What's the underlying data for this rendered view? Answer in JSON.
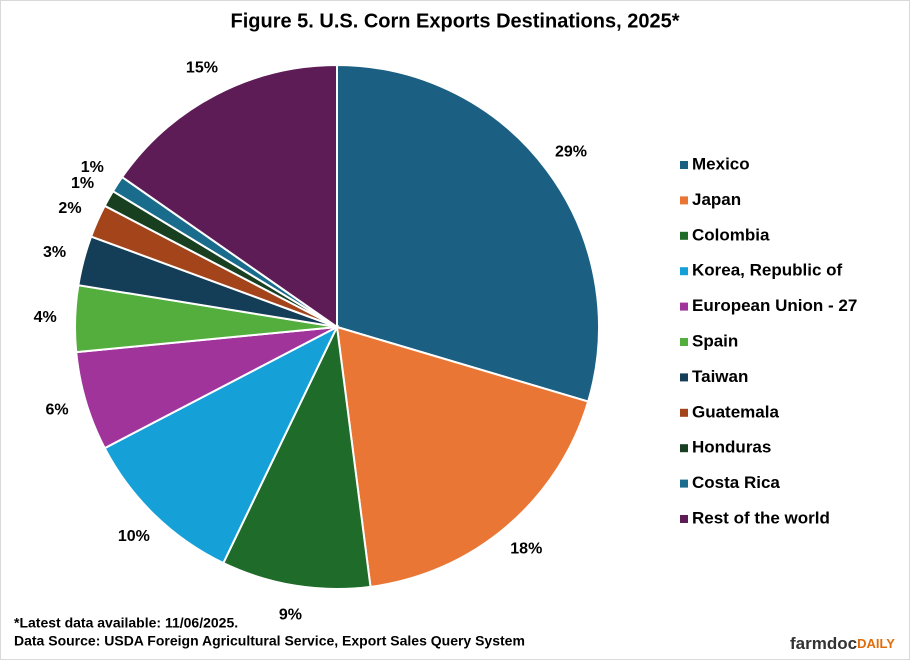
{
  "chart_data": {
    "type": "pie",
    "title": "Figure  5. U.S. Corn Exports Destinations,  2025*",
    "categories": [
      "Mexico",
      "Japan",
      "Colombia",
      "Korea, Republic of",
      "European Union - 27",
      "Spain",
      "Taiwan",
      "Guatemala",
      "Honduras",
      "Costa Rica",
      "Rest of the world"
    ],
    "values": [
      29,
      18,
      9,
      10,
      6,
      4,
      3,
      2,
      1,
      1,
      15
    ],
    "value_labels": [
      "29%",
      "18%",
      "9%",
      "10%",
      "6%",
      "4%",
      "3%",
      "2%",
      "1%",
      "1%",
      "15%"
    ],
    "colors": [
      "#1b5f82",
      "#e97634",
      "#1e6b2a",
      "#15a0d8",
      "#a1349b",
      "#54ae3d",
      "#143d57",
      "#a3441b",
      "#173f20",
      "#196c8c",
      "#5e1c57"
    ],
    "legend": "right",
    "notes": [
      "*Latest data available: 11/06/2025.",
      "Data Source: USDA Foreign Agricultural Service, Export Sales Query System"
    ],
    "logo": [
      "farmdoc",
      "DAILY"
    ]
  }
}
